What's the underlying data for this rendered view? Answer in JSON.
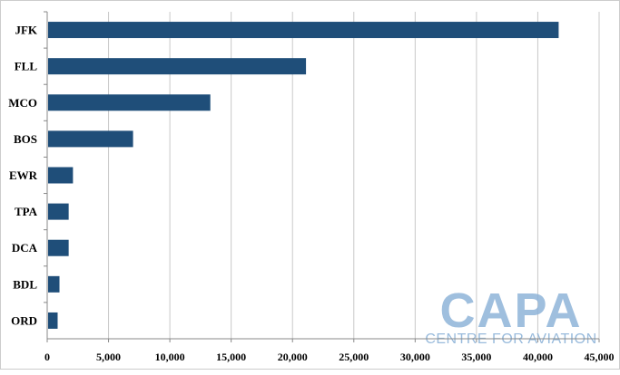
{
  "chart_data": {
    "type": "bar",
    "orientation": "horizontal",
    "categories": [
      "JFK",
      "FLL",
      "MCO",
      "BOS",
      "EWR",
      "TPA",
      "DCA",
      "BDL",
      "ORD"
    ],
    "values": [
      41700,
      21100,
      13300,
      7000,
      2100,
      1750,
      1750,
      1000,
      850
    ],
    "title": "",
    "xlabel": "",
    "ylabel": "",
    "xlim": [
      0,
      45000
    ],
    "xticks": [
      0,
      5000,
      10000,
      15000,
      20000,
      25000,
      30000,
      35000,
      40000,
      45000
    ],
    "xtick_labels": [
      "0",
      "5,000",
      "10,000",
      "15,000",
      "20,000",
      "25,000",
      "30,000",
      "35,000",
      "40,000",
      "45,000"
    ],
    "grid": "vertical",
    "bar_color": "#1f4e79",
    "grid_color": "#c8c8c8",
    "legend": "none"
  },
  "watermark": {
    "main_text": "CAPA",
    "sub_text": "CENTRE FOR AVIATION",
    "color": "#8fb4d9"
  }
}
